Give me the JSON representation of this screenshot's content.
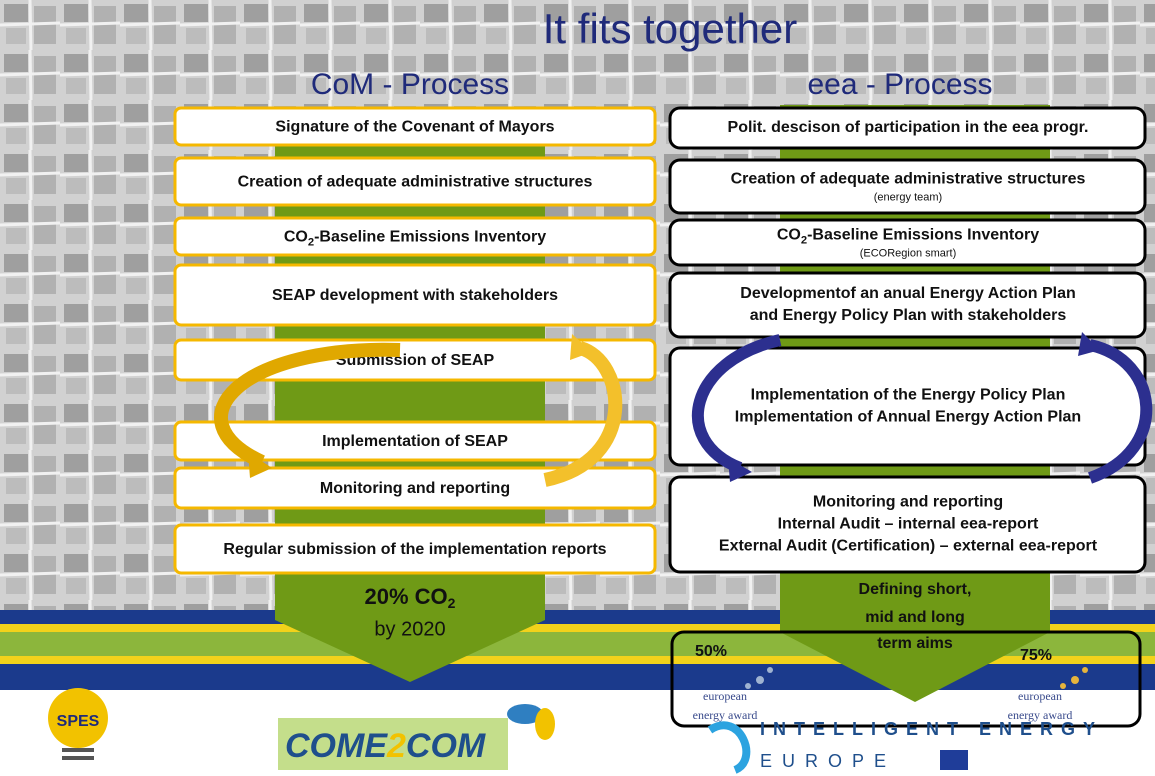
{
  "title": "It fits together",
  "left": {
    "heading": "CoM - Process",
    "steps": [
      "Signature of the Covenant of Mayors",
      "Creation of adequate administrative structures",
      {
        "pre": "CO",
        "sub": "2",
        "post": "-Baseline Emissions Inventory"
      },
      "SEAP development with stakeholders",
      "Submission of SEAP",
      "Implementation of SEAP",
      "Monitoring and reporting",
      "Regular submission of the implementation reports"
    ],
    "goal": {
      "pre": "20% CO",
      "sub": "2",
      "line2": "by 2020"
    }
  },
  "right": {
    "heading": "eea - Process",
    "steps": [
      {
        "lines": [
          "Polit. descison of participation in the eea progr."
        ]
      },
      {
        "lines": [
          "Creation of adequate administrative structures"
        ],
        "note": "(energy team)"
      },
      {
        "pre": "CO",
        "sub": "2",
        "post": "-Baseline Emissions Inventory",
        "note": "(ECORegion smart)"
      },
      {
        "lines": [
          "Developmentof an anual Energy Action Plan",
          "and Energy Policy Plan with stakeholders"
        ]
      },
      {
        "lines": [
          "Implementation of the Energy Policy Plan",
          "Implementation of Annual Energy Action Plan"
        ]
      },
      {
        "lines": [
          "Monitoring and reporting",
          "Internal Audit – internal eea-report",
          "External Audit (Certification) – external eea-report"
        ]
      }
    ],
    "goal": [
      "Defining short,",
      "mid and long",
      "term aims"
    ],
    "awards": [
      {
        "percent": "50%",
        "name": [
          "european",
          "energy award"
        ]
      },
      {
        "percent": "75%",
        "name": [
          "european",
          "energy award"
        ]
      }
    ]
  },
  "logos": {
    "spes": "SPES",
    "come2com": [
      "COME",
      "2",
      "COM"
    ],
    "ie": [
      "INTELLIGENT ENERGY",
      "EUROPE"
    ]
  }
}
